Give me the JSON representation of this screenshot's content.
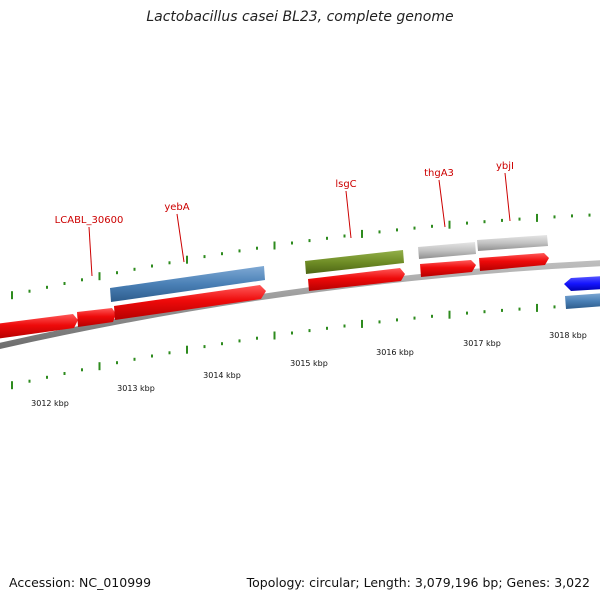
{
  "title": "Lactobacillus casei BL23, complete genome",
  "footer": {
    "accession": "Accession: NC_010999",
    "summary": "Topology: circular; Length: 3,079,196 bp; Genes: 3,022"
  },
  "colors": {
    "cds_red": "#ee0a0a",
    "gene_blue": "#4a80b6",
    "gene_olive": "#6f8d26",
    "gene_gray": "#c2c2c2",
    "gene_bright_blue": "#1515ff",
    "backbone": "#8a8a8a",
    "tick_green": "#2e8b1e",
    "label_red": "#cc0000"
  },
  "gene_labels": [
    "LCABL_30600",
    "yebA",
    "lsgC",
    "thgA3",
    "ybjI"
  ],
  "scale_labels": [
    "3012 kbp",
    "3013 kbp",
    "3014 kbp",
    "3015 kbp",
    "3016 kbp",
    "3017 kbp",
    "3018 kbp"
  ]
}
